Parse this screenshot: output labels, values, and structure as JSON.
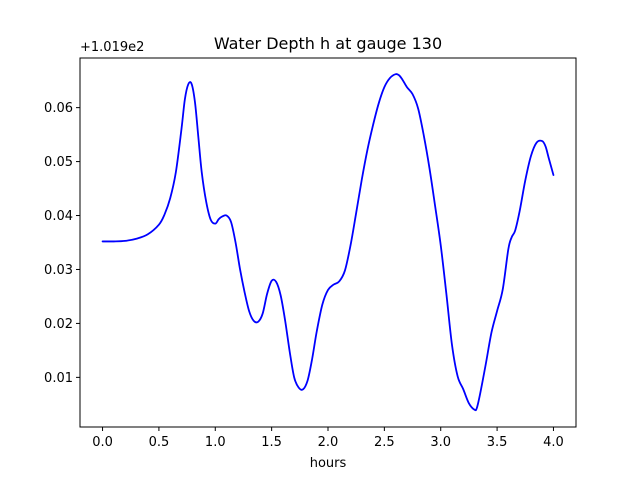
{
  "chart_data": {
    "type": "line",
    "title": "Water Depth h at gauge 130",
    "xlabel": "hours",
    "ylabel": "",
    "y_offset_text": "+1.019e2",
    "xlim": [
      -0.2,
      4.2
    ],
    "ylim": [
      0.0008,
      0.0692
    ],
    "x_ticks": [
      0.0,
      0.5,
      1.0,
      1.5,
      2.0,
      2.5,
      3.0,
      3.5,
      4.0
    ],
    "x_tick_labels": [
      "0.0",
      "0.5",
      "1.0",
      "1.5",
      "2.0",
      "2.5",
      "3.0",
      "3.5",
      "4.0"
    ],
    "y_ticks": [
      0.01,
      0.02,
      0.03,
      0.04,
      0.05,
      0.06
    ],
    "y_tick_labels": [
      "0.01",
      "0.02",
      "0.03",
      "0.04",
      "0.05",
      "0.06"
    ],
    "grid": false,
    "series": [
      {
        "color": "#0000ff",
        "x": [
          0.0,
          0.1,
          0.2,
          0.3,
          0.4,
          0.5,
          0.55,
          0.6,
          0.65,
          0.7,
          0.73,
          0.76,
          0.79,
          0.82,
          0.85,
          0.88,
          0.92,
          0.96,
          1.0,
          1.03,
          1.06,
          1.1,
          1.14,
          1.18,
          1.22,
          1.26,
          1.3,
          1.34,
          1.38,
          1.42,
          1.46,
          1.5,
          1.54,
          1.58,
          1.62,
          1.66,
          1.7,
          1.74,
          1.78,
          1.82,
          1.86,
          1.9,
          1.95,
          2.0,
          2.05,
          2.1,
          2.15,
          2.2,
          2.25,
          2.3,
          2.35,
          2.4,
          2.45,
          2.5,
          2.55,
          2.6,
          2.63,
          2.66,
          2.7,
          2.75,
          2.8,
          2.85,
          2.9,
          2.95,
          3.0,
          3.05,
          3.1,
          3.15,
          3.2,
          3.25,
          3.3,
          3.32,
          3.35,
          3.4,
          3.45,
          3.5,
          3.55,
          3.6,
          3.63,
          3.66,
          3.7,
          3.75,
          3.8,
          3.85,
          3.9,
          3.93,
          3.96,
          4.0
        ],
        "y": [
          0.0352,
          0.0352,
          0.0353,
          0.0357,
          0.0365,
          0.0383,
          0.0402,
          0.0432,
          0.048,
          0.056,
          0.0615,
          0.0643,
          0.0644,
          0.061,
          0.0545,
          0.048,
          0.0425,
          0.0392,
          0.0385,
          0.0393,
          0.0398,
          0.04,
          0.0388,
          0.035,
          0.03,
          0.0258,
          0.0223,
          0.0205,
          0.0203,
          0.0218,
          0.0255,
          0.0279,
          0.0277,
          0.0252,
          0.0205,
          0.0148,
          0.01,
          0.0081,
          0.0078,
          0.0095,
          0.0135,
          0.0185,
          0.0235,
          0.0262,
          0.0272,
          0.0278,
          0.0298,
          0.0345,
          0.0405,
          0.0467,
          0.0522,
          0.0568,
          0.0608,
          0.0638,
          0.0655,
          0.0662,
          0.066,
          0.0652,
          0.0638,
          0.0625,
          0.0598,
          0.0548,
          0.0488,
          0.0418,
          0.0345,
          0.0255,
          0.016,
          0.0102,
          0.0078,
          0.0052,
          0.004,
          0.0043,
          0.007,
          0.0125,
          0.0183,
          0.0223,
          0.0263,
          0.0338,
          0.036,
          0.0372,
          0.0408,
          0.0465,
          0.051,
          0.0535,
          0.0538,
          0.0528,
          0.0505,
          0.0475
        ]
      }
    ]
  }
}
